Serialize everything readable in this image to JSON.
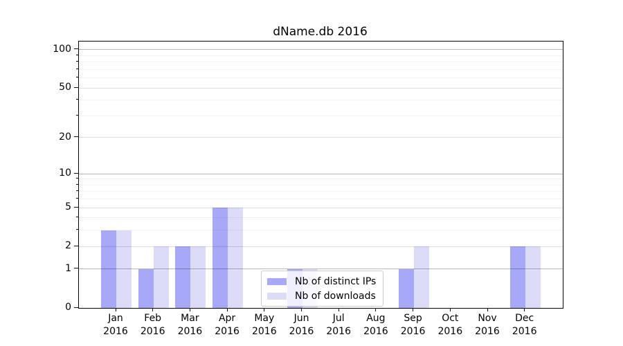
{
  "chart_data": {
    "type": "bar",
    "title": "dName.db 2016",
    "year_label": "2016",
    "categories": [
      "Jan",
      "Feb",
      "Mar",
      "Apr",
      "May",
      "Jun",
      "Jul",
      "Aug",
      "Sep",
      "Oct",
      "Nov",
      "Dec"
    ],
    "series": [
      {
        "name": "Nb of distinct IPs",
        "color": "#a8a8f8",
        "values": [
          3,
          1,
          2,
          5,
          0,
          1,
          0,
          0,
          1,
          0,
          0,
          2
        ]
      },
      {
        "name": "Nb of downloads",
        "color": "#dcdcf8",
        "values": [
          3,
          2,
          2,
          5,
          0,
          1,
          0,
          0,
          2,
          0,
          0,
          2
        ]
      }
    ],
    "y_axis": {
      "scale": "log1p",
      "tick_labels": [
        "0",
        "1",
        "2",
        "5",
        "10",
        "20",
        "50",
        "100"
      ],
      "ticks_major": [
        0,
        1,
        2,
        5,
        10,
        20,
        50,
        100
      ],
      "ticks_strong": [
        1,
        10,
        100
      ],
      "ticks_minor": [
        3,
        4,
        6,
        7,
        8,
        9,
        30,
        40,
        60,
        70,
        80,
        90
      ],
      "ylim": [
        0,
        116
      ]
    },
    "x_axis": {
      "tick_count": 12
    },
    "legend": {
      "position": "lower center"
    },
    "grid": true,
    "colors": {
      "grid_strong": "rgba(0,0,0,0.28)",
      "grid_major": "rgba(0,0,0,0.13)",
      "grid_minor": "rgba(0,0,0,0.055)",
      "spine": "#000000",
      "background": "#ffffff",
      "text": "#000000"
    }
  }
}
